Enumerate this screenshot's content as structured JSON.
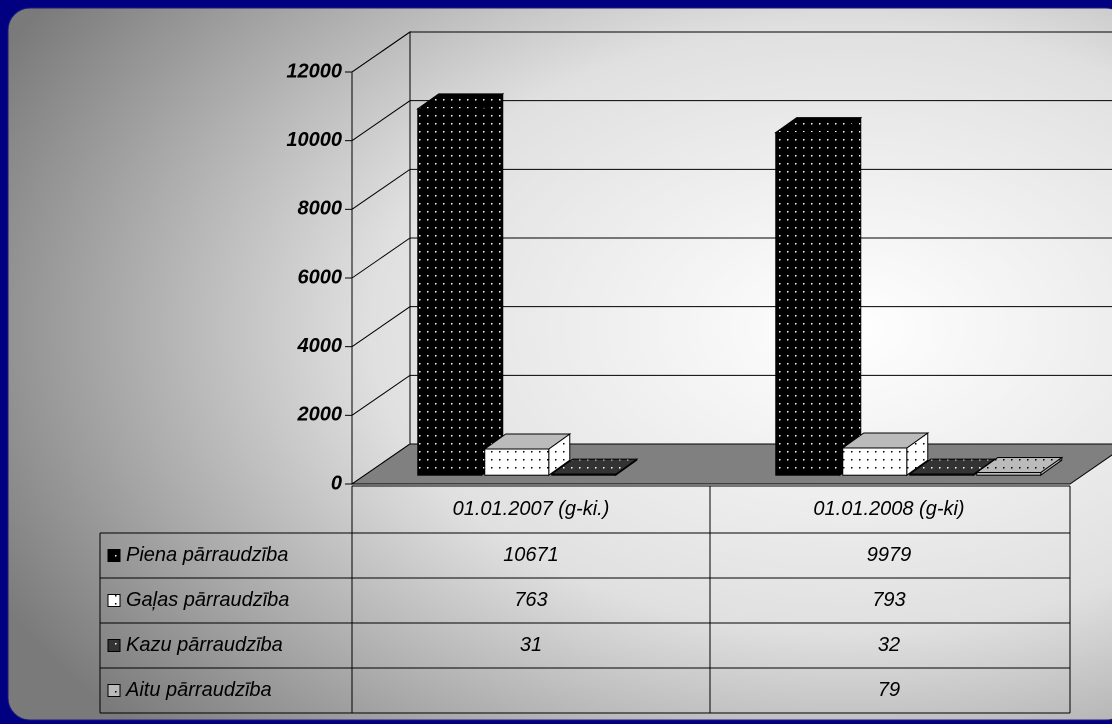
{
  "chart_data": {
    "type": "bar3d",
    "categories": [
      "01.01.2007 (g-ki.)",
      "01.01.2008 (g-ki)"
    ],
    "series": [
      {
        "name": "Piena pārraudzība",
        "color": "#000000",
        "values": [
          10671,
          9979
        ]
      },
      {
        "name": "Gaļas pārraudzība",
        "color": "#ffffff",
        "values": [
          763,
          793
        ]
      },
      {
        "name": "Kazu  pārraudzība",
        "color": "#333333",
        "values": [
          31,
          32
        ]
      },
      {
        "name": "Aitu  pārraudzība",
        "color": "#bbbbbb",
        "values": [
          null,
          79
        ]
      }
    ],
    "ylim": [
      0,
      12000
    ],
    "yticks": [
      0,
      2000,
      4000,
      6000,
      8000,
      10000,
      12000
    ],
    "grid": true
  }
}
